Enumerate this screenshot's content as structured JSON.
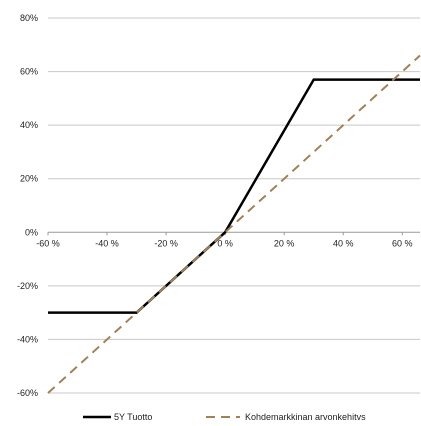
{
  "chart_data": {
    "type": "line",
    "xlim": [
      -60,
      66
    ],
    "ylim": [
      -60,
      80
    ],
    "x_ticks": [
      -60,
      -40,
      -20,
      0,
      20,
      40,
      60
    ],
    "y_ticks": [
      -60,
      -40,
      -20,
      0,
      20,
      40,
      60,
      80
    ],
    "x_tick_labels": [
      "-60 %",
      "-40 %",
      "-20 %",
      "0 %",
      "20 %",
      "40 %",
      "60 %"
    ],
    "y_tick_labels": [
      "-60%",
      "-40%",
      "-20%",
      "0%",
      "20%",
      "40%",
      "60%",
      "80%"
    ],
    "grid": "horizontal",
    "legend_position": "bottom",
    "series": [
      {
        "name": "5Y Tuotto",
        "style": "solid",
        "color": "#000000",
        "points": [
          [
            -60,
            -30
          ],
          [
            -30,
            -30
          ],
          [
            0,
            0
          ],
          [
            30,
            57
          ],
          [
            66,
            57
          ]
        ]
      },
      {
        "name": "Kohdemarkkinan arvonkehitvs",
        "style": "dashed",
        "color": "#a0825a",
        "points": [
          [
            -60,
            -60
          ],
          [
            66,
            66
          ]
        ]
      }
    ]
  }
}
